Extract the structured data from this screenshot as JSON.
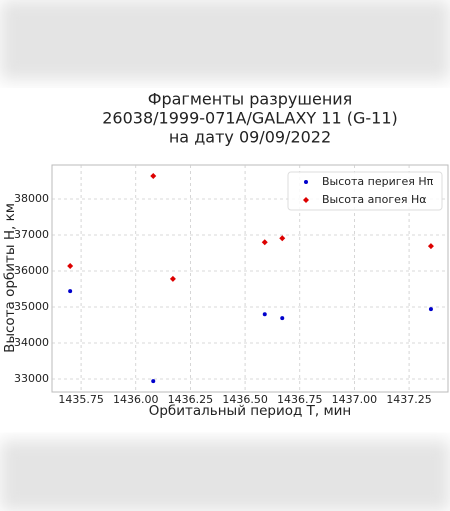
{
  "chart_data": {
    "type": "scatter",
    "title": [
      "Фрагменты разрушения",
      "26038/1999-071A/GALAXY 11 (G-11)",
      "на дату 09/09/2022"
    ],
    "x_label": "Орбитальный период Т, мин",
    "y_label": "Высота орбиты Н, км",
    "xlim": [
      1435.617,
      1437.428
    ],
    "ylim": [
      32639,
      38944
    ],
    "xticks": [
      1435.75,
      {
        "value": 1436,
        "label": "1436.00"
      },
      1436.25,
      {
        "value": 1436.5,
        "label": "1436.50"
      },
      1436.75,
      {
        "value": 1437,
        "label": "1437.00"
      },
      1437.25
    ],
    "yticks": [
      33000,
      34000,
      35000,
      36000,
      37000,
      38000
    ],
    "grid": true,
    "legend": "upper right",
    "series": [
      {
        "name": "Высота перигея Hπ",
        "color": "#0000cc",
        "marker": "circle",
        "x": [
          1435.7,
          1436.08,
          1436.59,
          1436.67,
          1437.35
        ],
        "values": [
          35440,
          32940,
          34800,
          34690,
          34940
        ]
      },
      {
        "name": "Высота апогея Hα",
        "color": "#dd0000",
        "marker": "diamond",
        "x": [
          1435.7,
          1436.08,
          1436.17,
          1436.59,
          1436.67,
          1437.35
        ],
        "values": [
          36140,
          38640,
          35780,
          36800,
          36910,
          36690
        ]
      }
    ]
  }
}
